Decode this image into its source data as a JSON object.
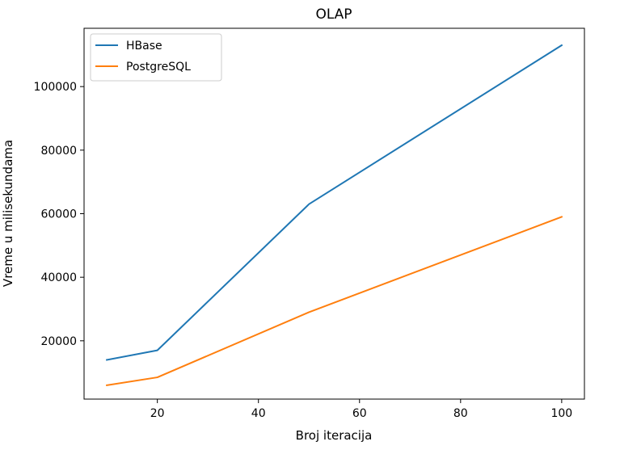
{
  "chart_data": {
    "type": "line",
    "title": "OLAP",
    "xlabel": "Broj iteracija",
    "ylabel": "Vreme u milisekundama",
    "x": [
      10,
      20,
      50,
      100
    ],
    "series": [
      {
        "name": "HBase",
        "color": "#1f77b4",
        "values": [
          14000,
          17000,
          63000,
          113000
        ]
      },
      {
        "name": "PostgreSQL",
        "color": "#ff7f0e",
        "values": [
          6000,
          8500,
          29000,
          59000
        ]
      }
    ],
    "xlim": [
      5.5,
      104.5
    ],
    "ylim": [
      1650,
      118350
    ],
    "xticks": [
      20,
      40,
      60,
      80,
      100
    ],
    "yticks": [
      20000,
      40000,
      60000,
      80000,
      100000
    ],
    "legend_position": "top-left",
    "grid": false
  }
}
